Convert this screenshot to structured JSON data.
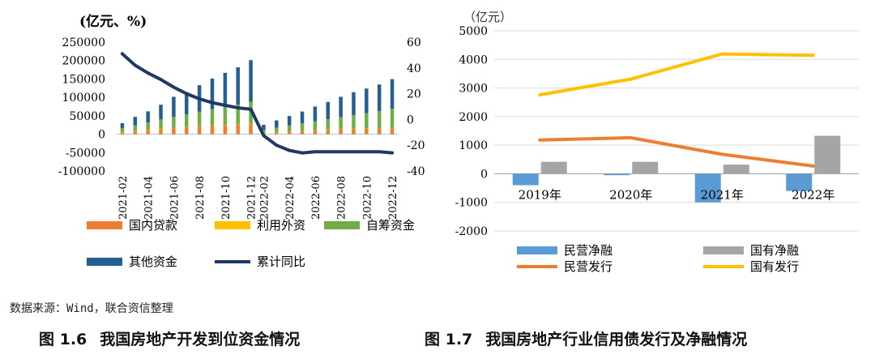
{
  "chart_data": [
    {
      "type": "bar",
      "stacked": true,
      "unit_label": "(亿元、%)",
      "categories": [
        "2021-02",
        "2021-03",
        "2021-04",
        "2021-05",
        "2021-06",
        "2021-07",
        "2021-08",
        "2021-09",
        "2021-10",
        "2021-11",
        "2021-12",
        "2022-02",
        "2022-03",
        "2022-04",
        "2022-05",
        "2022-06",
        "2022-07",
        "2022-08",
        "2022-09",
        "2022-10",
        "2022-11",
        "2022-12"
      ],
      "tick_labels": [
        "2021-02",
        "2021-04",
        "2021-06",
        "2021-08",
        "2021-10",
        "2021-12",
        "2022-02",
        "2022-04",
        "2022-06",
        "2022-08",
        "2022-10",
        "2022-12"
      ],
      "series": [
        {
          "name": "国内贷款",
          "color": "#ED7D31",
          "values": [
            6000,
            9000,
            12000,
            15000,
            17500,
            20000,
            22000,
            24000,
            25500,
            27500,
            28000,
            3500,
            5500,
            7500,
            9500,
            11000,
            12500,
            13500,
            15000,
            16000,
            17000,
            17500
          ]
        },
        {
          "name": "利用外资",
          "color": "#FFC000",
          "values": [
            20,
            30,
            40,
            50,
            60,
            70,
            80,
            90,
            100,
            110,
            120,
            10,
            15,
            20,
            25,
            30,
            35,
            40,
            45,
            50,
            55,
            60
          ]
        },
        {
          "name": "自筹资金",
          "color": "#70AD47",
          "values": [
            10000,
            15000,
            20000,
            25000,
            30000,
            34000,
            39000,
            44000,
            48000,
            53000,
            60000,
            8000,
            12000,
            16000,
            20000,
            24000,
            28000,
            33000,
            37000,
            41000,
            46000,
            52000
          ]
        },
        {
          "name": "其他资金",
          "color": "#255E91",
          "values": [
            14000,
            23000,
            30000,
            40000,
            54000,
            60000,
            72000,
            83000,
            93000,
            101000,
            113000,
            14000,
            20000,
            26000,
            32000,
            40000,
            47000,
            55000,
            62000,
            67000,
            72000,
            80000
          ]
        },
        {
          "name": "累计同比",
          "type": "line",
          "axis": "right",
          "color": "#203864",
          "values": [
            51,
            42,
            36,
            31,
            25,
            20,
            16,
            13,
            11,
            9,
            8,
            -12.5,
            -20,
            -24,
            -26,
            -25,
            -25,
            -25,
            -25,
            -25,
            -25,
            -25.9
          ]
        }
      ],
      "ylim_left": [
        -100000,
        250000
      ],
      "yticks_left": [
        "250000",
        "200000",
        "150000",
        "100000",
        "50000",
        "0",
        "-50000",
        "-100000"
      ],
      "ylim_right": [
        -40,
        60
      ],
      "yticks_right": [
        "60",
        "40",
        "20",
        "0",
        "-20",
        "-40"
      ]
    },
    {
      "type": "bar+line",
      "unit_label": "（亿元）",
      "categories": [
        "2019年",
        "2020年",
        "2021年",
        "2022年"
      ],
      "series": [
        {
          "name": "民营净融",
          "type": "bar",
          "color": "#5B9BD5",
          "values": [
            -400,
            -50,
            -1000,
            -600
          ]
        },
        {
          "name": "国有净融",
          "type": "bar",
          "color": "#A5A5A5",
          "values": [
            420,
            420,
            320,
            1330
          ]
        },
        {
          "name": "民营发行",
          "type": "line",
          "color": "#ED7D31",
          "values": [
            1180,
            1260,
            680,
            270
          ]
        },
        {
          "name": "国有发行",
          "type": "line",
          "color": "#FFC000",
          "values": [
            2760,
            3310,
            4190,
            4140
          ]
        }
      ],
      "ylim": [
        -2000,
        5000
      ],
      "yticks": [
        "5000",
        "4000",
        "3000",
        "2000",
        "1000",
        "0",
        "-1000",
        "-2000"
      ]
    }
  ],
  "source": "数据来源：Wind，联合资信整理",
  "captions": [
    {
      "number": "图 1.6",
      "title": "我国房地产开发到位资金情况"
    },
    {
      "number": "图 1.7",
      "title": "我国房地产行业信用债发行及净融情况"
    }
  ]
}
